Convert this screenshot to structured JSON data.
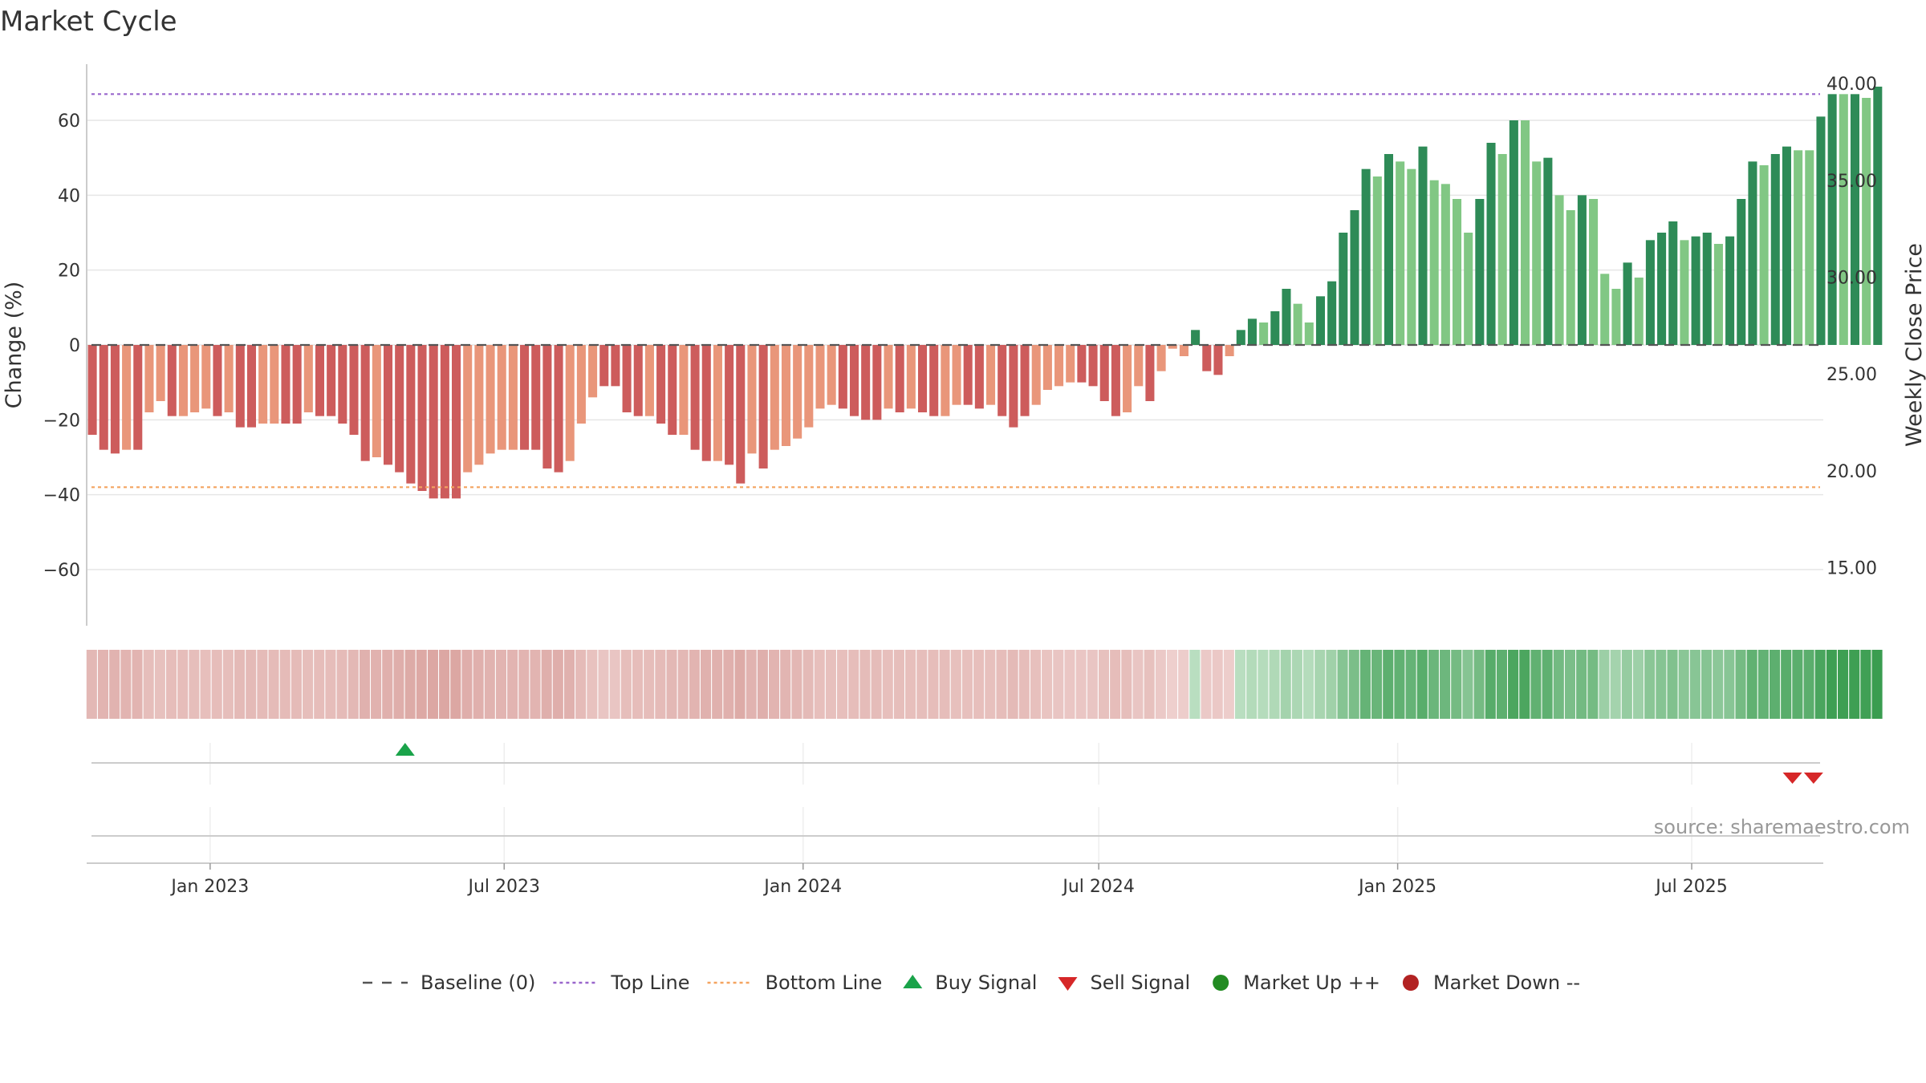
{
  "chart_data": {
    "type": "bar",
    "title": "Market Cycle",
    "ylabel": "Change (%)",
    "y2label": "Weekly Close Price",
    "ylim": [
      -75,
      75
    ],
    "y2lim": [
      12.0,
      41.0
    ],
    "yticks": [
      {
        "value": 60,
        "label": "60"
      },
      {
        "value": 40,
        "label": "40"
      },
      {
        "value": 20,
        "label": "20"
      },
      {
        "value": 0,
        "label": "0"
      },
      {
        "value": -20,
        "label": "−20"
      },
      {
        "value": -40,
        "label": "−40"
      },
      {
        "value": -60,
        "label": "−60"
      }
    ],
    "y2ticks": [
      {
        "value": 40.0,
        "label": "40.00"
      },
      {
        "value": 35.0,
        "label": "35.00"
      },
      {
        "value": 30.0,
        "label": "30.00"
      },
      {
        "value": 25.0,
        "label": "25.00"
      },
      {
        "value": 20.0,
        "label": "20.00"
      },
      {
        "value": 15.0,
        "label": "15.00"
      }
    ],
    "x_start": "2022-10-17",
    "x_end": "2025-09-20",
    "xticks": [
      {
        "date": "2023-01-01",
        "label": "Jan 2023"
      },
      {
        "date": "2023-07-01",
        "label": "Jul 2023"
      },
      {
        "date": "2024-01-01",
        "label": "Jan 2024"
      },
      {
        "date": "2024-07-01",
        "label": "Jul 2024"
      },
      {
        "date": "2025-01-01",
        "label": "Jan 2025"
      },
      {
        "date": "2025-07-01",
        "label": "Jul 2025"
      }
    ],
    "first_week": "2022-10-17",
    "top_line": 67,
    "bottom_line": -38,
    "grid": true,
    "legend_position": "bottom",
    "colors": {
      "down_strong": "#cd5c5c",
      "down_weak": "#e9967a",
      "up_strong": "#2e8b57",
      "up_weak": "#81c784",
      "top_line": "#9966cc",
      "bottom_line": "#f4a460",
      "baseline": "#555555",
      "buy": "#1aa34a",
      "sell": "#d62728",
      "market_up": "#228b22",
      "market_down": "#b22222"
    },
    "weekly_change": [
      {
        "v": -24,
        "s": 1
      },
      {
        "v": -28,
        "s": 1
      },
      {
        "v": -29,
        "s": 1
      },
      {
        "v": -28,
        "s": 0
      },
      {
        "v": -28,
        "s": 1
      },
      {
        "v": -18,
        "s": 0
      },
      {
        "v": -15,
        "s": 0
      },
      {
        "v": -19,
        "s": 1
      },
      {
        "v": -19,
        "s": 0
      },
      {
        "v": -18,
        "s": 0
      },
      {
        "v": -17,
        "s": 0
      },
      {
        "v": -19,
        "s": 1
      },
      {
        "v": -18,
        "s": 0
      },
      {
        "v": -22,
        "s": 1
      },
      {
        "v": -22,
        "s": 1
      },
      {
        "v": -21,
        "s": 0
      },
      {
        "v": -21,
        "s": 0
      },
      {
        "v": -21,
        "s": 1
      },
      {
        "v": -21,
        "s": 1
      },
      {
        "v": -18,
        "s": 0
      },
      {
        "v": -19,
        "s": 1
      },
      {
        "v": -19,
        "s": 1
      },
      {
        "v": -21,
        "s": 1
      },
      {
        "v": -24,
        "s": 1
      },
      {
        "v": -31,
        "s": 1
      },
      {
        "v": -30,
        "s": 0
      },
      {
        "v": -32,
        "s": 1
      },
      {
        "v": -34,
        "s": 1
      },
      {
        "v": -37,
        "s": 1
      },
      {
        "v": -39,
        "s": 1
      },
      {
        "v": -41,
        "s": 1
      },
      {
        "v": -41,
        "s": 1
      },
      {
        "v": -41,
        "s": 1
      },
      {
        "v": -34,
        "s": 0
      },
      {
        "v": -32,
        "s": 0
      },
      {
        "v": -29,
        "s": 0
      },
      {
        "v": -28,
        "s": 0
      },
      {
        "v": -28,
        "s": 0
      },
      {
        "v": -28,
        "s": 1
      },
      {
        "v": -28,
        "s": 1
      },
      {
        "v": -33,
        "s": 1
      },
      {
        "v": -34,
        "s": 1
      },
      {
        "v": -31,
        "s": 0
      },
      {
        "v": -21,
        "s": 0
      },
      {
        "v": -14,
        "s": 0
      },
      {
        "v": -11,
        "s": 1
      },
      {
        "v": -11,
        "s": 1
      },
      {
        "v": -18,
        "s": 1
      },
      {
        "v": -19,
        "s": 1
      },
      {
        "v": -19,
        "s": 0
      },
      {
        "v": -21,
        "s": 1
      },
      {
        "v": -24,
        "s": 1
      },
      {
        "v": -24,
        "s": 0
      },
      {
        "v": -28,
        "s": 1
      },
      {
        "v": -31,
        "s": 1
      },
      {
        "v": -31,
        "s": 0
      },
      {
        "v": -32,
        "s": 1
      },
      {
        "v": -37,
        "s": 1
      },
      {
        "v": -29,
        "s": 0
      },
      {
        "v": -33,
        "s": 1
      },
      {
        "v": -28,
        "s": 0
      },
      {
        "v": -27,
        "s": 0
      },
      {
        "v": -25,
        "s": 0
      },
      {
        "v": -22,
        "s": 0
      },
      {
        "v": -17,
        "s": 0
      },
      {
        "v": -16,
        "s": 0
      },
      {
        "v": -17,
        "s": 1
      },
      {
        "v": -19,
        "s": 1
      },
      {
        "v": -20,
        "s": 1
      },
      {
        "v": -20,
        "s": 1
      },
      {
        "v": -17,
        "s": 0
      },
      {
        "v": -18,
        "s": 1
      },
      {
        "v": -17,
        "s": 0
      },
      {
        "v": -18,
        "s": 1
      },
      {
        "v": -19,
        "s": 1
      },
      {
        "v": -19,
        "s": 0
      },
      {
        "v": -16,
        "s": 0
      },
      {
        "v": -16,
        "s": 1
      },
      {
        "v": -17,
        "s": 1
      },
      {
        "v": -16,
        "s": 0
      },
      {
        "v": -19,
        "s": 1
      },
      {
        "v": -22,
        "s": 1
      },
      {
        "v": -19,
        "s": 1
      },
      {
        "v": -16,
        "s": 0
      },
      {
        "v": -12,
        "s": 0
      },
      {
        "v": -11,
        "s": 0
      },
      {
        "v": -10,
        "s": 0
      },
      {
        "v": -10,
        "s": 1
      },
      {
        "v": -11,
        "s": 1
      },
      {
        "v": -15,
        "s": 1
      },
      {
        "v": -19,
        "s": 1
      },
      {
        "v": -18,
        "s": 0
      },
      {
        "v": -11,
        "s": 0
      },
      {
        "v": -15,
        "s": 1
      },
      {
        "v": -7,
        "s": 0
      },
      {
        "v": -1,
        "s": 0
      },
      {
        "v": -3,
        "s": 0
      },
      {
        "v": 4,
        "s": 1
      },
      {
        "v": -7,
        "s": 1
      },
      {
        "v": -8,
        "s": 1
      },
      {
        "v": -3,
        "s": 0
      },
      {
        "v": 4,
        "s": 1
      },
      {
        "v": 7,
        "s": 1
      },
      {
        "v": 6,
        "s": 0
      },
      {
        "v": 9,
        "s": 1
      },
      {
        "v": 15,
        "s": 1
      },
      {
        "v": 11,
        "s": 0
      },
      {
        "v": 6,
        "s": 0
      },
      {
        "v": 13,
        "s": 1
      },
      {
        "v": 17,
        "s": 1
      },
      {
        "v": 30,
        "s": 1
      },
      {
        "v": 36,
        "s": 1
      },
      {
        "v": 47,
        "s": 1
      },
      {
        "v": 45,
        "s": 0
      },
      {
        "v": 51,
        "s": 1
      },
      {
        "v": 49,
        "s": 0
      },
      {
        "v": 47,
        "s": 0
      },
      {
        "v": 53,
        "s": 1
      },
      {
        "v": 44,
        "s": 0
      },
      {
        "v": 43,
        "s": 0
      },
      {
        "v": 39,
        "s": 0
      },
      {
        "v": 30,
        "s": 0
      },
      {
        "v": 39,
        "s": 1
      },
      {
        "v": 54,
        "s": 1
      },
      {
        "v": 51,
        "s": 0
      },
      {
        "v": 60,
        "s": 1
      },
      {
        "v": 60,
        "s": 0
      },
      {
        "v": 49,
        "s": 0
      },
      {
        "v": 50,
        "s": 1
      },
      {
        "v": 40,
        "s": 0
      },
      {
        "v": 36,
        "s": 0
      },
      {
        "v": 40,
        "s": 1
      },
      {
        "v": 39,
        "s": 0
      },
      {
        "v": 19,
        "s": 0
      },
      {
        "v": 15,
        "s": 0
      },
      {
        "v": 22,
        "s": 1
      },
      {
        "v": 18,
        "s": 0
      },
      {
        "v": 28,
        "s": 1
      },
      {
        "v": 30,
        "s": 1
      },
      {
        "v": 33,
        "s": 1
      },
      {
        "v": 28,
        "s": 0
      },
      {
        "v": 29,
        "s": 1
      },
      {
        "v": 30,
        "s": 1
      },
      {
        "v": 27,
        "s": 0
      },
      {
        "v": 29,
        "s": 1
      },
      {
        "v": 39,
        "s": 1
      },
      {
        "v": 49,
        "s": 1
      },
      {
        "v": 48,
        "s": 0
      },
      {
        "v": 51,
        "s": 1
      },
      {
        "v": 53,
        "s": 1
      },
      {
        "v": 52,
        "s": 0
      },
      {
        "v": 52,
        "s": 0
      },
      {
        "v": 61,
        "s": 1
      },
      {
        "v": 67,
        "s": 1
      },
      {
        "v": 67,
        "s": 0
      },
      {
        "v": 67,
        "s": 1
      },
      {
        "v": 66,
        "s": 0
      },
      {
        "v": 69,
        "s": 1
      }
    ],
    "buy_signals": [
      "2023-05-01"
    ],
    "sell_signals": [
      "2025-09-01",
      "2025-09-14"
    ],
    "source": "source: sharemaestro.com",
    "legend": [
      {
        "key": "baseline",
        "label": "Baseline (0)"
      },
      {
        "key": "top",
        "label": "Top Line"
      },
      {
        "key": "bottom",
        "label": "Bottom Line"
      },
      {
        "key": "buy",
        "label": "Buy Signal"
      },
      {
        "key": "sell",
        "label": "Sell Signal"
      },
      {
        "key": "up",
        "label": "Market Up ++"
      },
      {
        "key": "down",
        "label": "Market Down --"
      }
    ]
  }
}
